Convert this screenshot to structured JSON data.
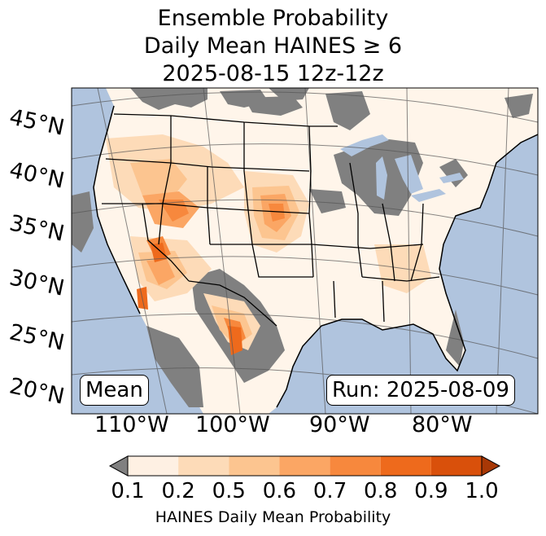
{
  "title": {
    "line1": "Ensemble Probability",
    "line2": "Daily Mean HAINES ≥ 6",
    "line3": "2025-08-15 12z-12z"
  },
  "badges": {
    "left": "Mean",
    "right": "Run: 2025-08-09"
  },
  "latitude_labels": [
    "45°N",
    "40°N",
    "35°N",
    "30°N",
    "25°N",
    "20°N"
  ],
  "longitude_labels": [
    "110°W",
    "100°W",
    "90°W",
    "80°W"
  ],
  "colorbar": {
    "ticks": [
      "0.1",
      "0.2",
      "0.5",
      "0.6",
      "0.7",
      "0.8",
      "0.9",
      "1.0"
    ],
    "colors": [
      "#fef0e3",
      "#fddbb8",
      "#fcc590",
      "#fba664",
      "#f7883d",
      "#ee6a1c",
      "#d9500b"
    ],
    "under_color": "#808080",
    "over_color": "#a83806",
    "label": "HAINES Daily Mean Probability"
  },
  "map_colors": {
    "ocean": "#b0c4de",
    "land": "#fff5ea",
    "gray": "#808080"
  }
}
